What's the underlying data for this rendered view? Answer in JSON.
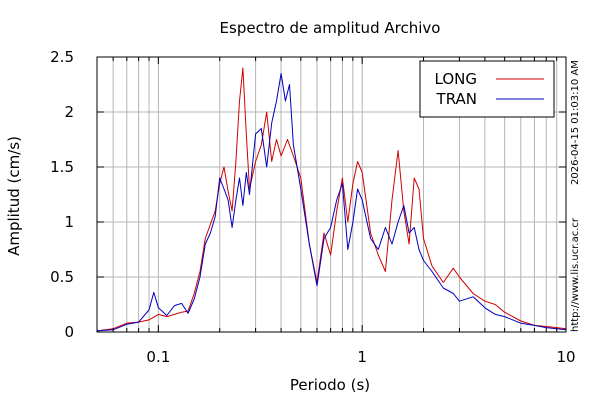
{
  "chart_data": {
    "type": "line",
    "title": "Espectro de amplitud Archivo",
    "xlabel": "Periodo (s)",
    "ylabel": "Amplitud (cm/s)",
    "x_scale": "log",
    "xlim": [
      0.05,
      10
    ],
    "ylim": [
      0,
      2.5
    ],
    "grid": true,
    "legend_position": "top-right",
    "x_ticks": [
      {
        "value": 0.1,
        "label": "0.1"
      },
      {
        "value": 1,
        "label": "1"
      },
      {
        "value": 10,
        "label": "10"
      }
    ],
    "y_ticks": [
      {
        "value": 0,
        "label": "0"
      },
      {
        "value": 0.5,
        "label": "0.5"
      },
      {
        "value": 1,
        "label": "1"
      },
      {
        "value": 1.5,
        "label": "1.5"
      },
      {
        "value": 2,
        "label": "2"
      },
      {
        "value": 2.5,
        "label": "2.5"
      }
    ],
    "series": [
      {
        "name": "LONG",
        "color": "#d00000",
        "points": [
          [
            0.05,
            0.01
          ],
          [
            0.06,
            0.03
          ],
          [
            0.07,
            0.08
          ],
          [
            0.08,
            0.09
          ],
          [
            0.09,
            0.11
          ],
          [
            0.1,
            0.16
          ],
          [
            0.11,
            0.14
          ],
          [
            0.12,
            0.16
          ],
          [
            0.13,
            0.18
          ],
          [
            0.14,
            0.19
          ],
          [
            0.15,
            0.35
          ],
          [
            0.16,
            0.55
          ],
          [
            0.17,
            0.85
          ],
          [
            0.18,
            0.98
          ],
          [
            0.19,
            1.1
          ],
          [
            0.2,
            1.35
          ],
          [
            0.21,
            1.5
          ],
          [
            0.22,
            1.28
          ],
          [
            0.23,
            1.1
          ],
          [
            0.24,
            1.55
          ],
          [
            0.25,
            2.1
          ],
          [
            0.26,
            2.4
          ],
          [
            0.27,
            1.8
          ],
          [
            0.28,
            1.3
          ],
          [
            0.3,
            1.55
          ],
          [
            0.32,
            1.7
          ],
          [
            0.34,
            2.0
          ],
          [
            0.36,
            1.55
          ],
          [
            0.38,
            1.75
          ],
          [
            0.4,
            1.6
          ],
          [
            0.43,
            1.75
          ],
          [
            0.46,
            1.6
          ],
          [
            0.5,
            1.4
          ],
          [
            0.55,
            0.8
          ],
          [
            0.6,
            0.45
          ],
          [
            0.65,
            0.9
          ],
          [
            0.7,
            0.7
          ],
          [
            0.75,
            1.1
          ],
          [
            0.8,
            1.4
          ],
          [
            0.85,
            1.0
          ],
          [
            0.9,
            1.35
          ],
          [
            0.95,
            1.55
          ],
          [
            1.0,
            1.45
          ],
          [
            1.1,
            0.9
          ],
          [
            1.2,
            0.7
          ],
          [
            1.3,
            0.55
          ],
          [
            1.4,
            1.2
          ],
          [
            1.5,
            1.65
          ],
          [
            1.6,
            1.1
          ],
          [
            1.7,
            0.8
          ],
          [
            1.8,
            1.4
          ],
          [
            1.9,
            1.3
          ],
          [
            2.0,
            0.85
          ],
          [
            2.2,
            0.6
          ],
          [
            2.5,
            0.45
          ],
          [
            2.8,
            0.58
          ],
          [
            3.0,
            0.5
          ],
          [
            3.5,
            0.35
          ],
          [
            4.0,
            0.28
          ],
          [
            4.5,
            0.25
          ],
          [
            5.0,
            0.18
          ],
          [
            6.0,
            0.1
          ],
          [
            7.0,
            0.06
          ],
          [
            8.0,
            0.05
          ],
          [
            9.0,
            0.04
          ],
          [
            10.0,
            0.03
          ]
        ]
      },
      {
        "name": "TRAN",
        "color": "#0000c0",
        "points": [
          [
            0.05,
            0.01
          ],
          [
            0.06,
            0.02
          ],
          [
            0.07,
            0.07
          ],
          [
            0.08,
            0.09
          ],
          [
            0.09,
            0.2
          ],
          [
            0.095,
            0.36
          ],
          [
            0.1,
            0.22
          ],
          [
            0.11,
            0.15
          ],
          [
            0.12,
            0.24
          ],
          [
            0.13,
            0.26
          ],
          [
            0.14,
            0.17
          ],
          [
            0.15,
            0.3
          ],
          [
            0.16,
            0.5
          ],
          [
            0.17,
            0.8
          ],
          [
            0.18,
            0.9
          ],
          [
            0.19,
            1.05
          ],
          [
            0.2,
            1.4
          ],
          [
            0.21,
            1.3
          ],
          [
            0.22,
            1.2
          ],
          [
            0.23,
            0.95
          ],
          [
            0.24,
            1.2
          ],
          [
            0.25,
            1.4
          ],
          [
            0.26,
            1.15
          ],
          [
            0.27,
            1.45
          ],
          [
            0.28,
            1.25
          ],
          [
            0.3,
            1.8
          ],
          [
            0.32,
            1.85
          ],
          [
            0.34,
            1.5
          ],
          [
            0.36,
            1.9
          ],
          [
            0.38,
            2.1
          ],
          [
            0.4,
            2.35
          ],
          [
            0.42,
            2.1
          ],
          [
            0.44,
            2.25
          ],
          [
            0.46,
            1.7
          ],
          [
            0.5,
            1.3
          ],
          [
            0.55,
            0.8
          ],
          [
            0.6,
            0.42
          ],
          [
            0.65,
            0.85
          ],
          [
            0.7,
            0.95
          ],
          [
            0.75,
            1.2
          ],
          [
            0.8,
            1.35
          ],
          [
            0.85,
            0.75
          ],
          [
            0.9,
            1.0
          ],
          [
            0.95,
            1.3
          ],
          [
            1.0,
            1.2
          ],
          [
            1.1,
            0.85
          ],
          [
            1.2,
            0.75
          ],
          [
            1.3,
            0.95
          ],
          [
            1.4,
            0.8
          ],
          [
            1.5,
            1.0
          ],
          [
            1.6,
            1.15
          ],
          [
            1.7,
            0.9
          ],
          [
            1.8,
            0.95
          ],
          [
            1.9,
            0.75
          ],
          [
            2.0,
            0.65
          ],
          [
            2.2,
            0.55
          ],
          [
            2.5,
            0.4
          ],
          [
            2.8,
            0.35
          ],
          [
            3.0,
            0.28
          ],
          [
            3.5,
            0.32
          ],
          [
            4.0,
            0.22
          ],
          [
            4.5,
            0.16
          ],
          [
            5.0,
            0.14
          ],
          [
            6.0,
            0.08
          ],
          [
            7.0,
            0.06
          ],
          [
            8.0,
            0.04
          ],
          [
            9.0,
            0.03
          ],
          [
            10.0,
            0.02
          ]
        ]
      }
    ]
  },
  "side_notes": {
    "timestamp": "2026-04-15 01:03:10 AM",
    "url": "http://www.lis.ucr.ac.cr"
  }
}
